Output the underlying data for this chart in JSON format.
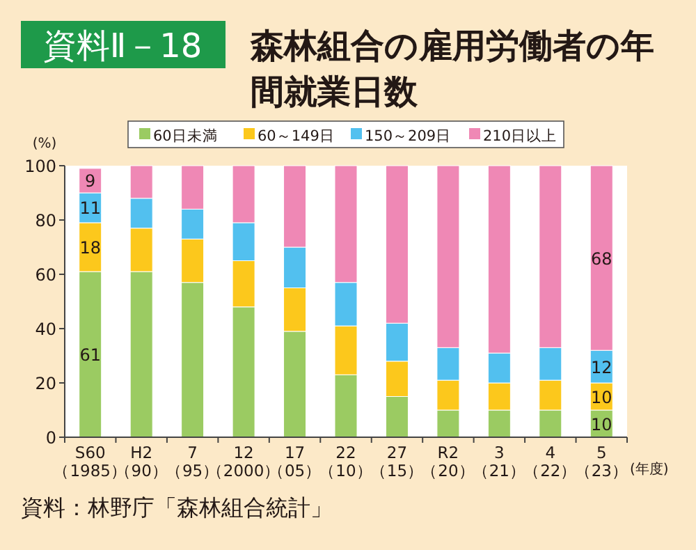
{
  "chart_data": {
    "type": "bar",
    "stacked": true,
    "title": "森林組合の雇用労働者の年間就業日数",
    "ylabel": "(%)",
    "xlabel": "(年度)",
    "annotations": [
      "資料Ⅱ－18",
      "資料：林野庁「森林組合統計」"
    ],
    "categories": [
      "S60\n（1985）",
      "H2\n（90）",
      "7\n（95）",
      "12\n（2000）",
      "17\n（05）",
      "22\n（10）",
      "27\n（15）",
      "R2\n（20）",
      "3\n（21）",
      "4\n（22）",
      "5\n（23）"
    ],
    "series": [
      {
        "name": "60日未満",
        "color": "#9bcb62",
        "values": [
          61,
          61,
          57,
          48,
          39,
          23,
          15,
          10,
          10,
          10,
          10
        ],
        "value_labels": [
          "61",
          null,
          null,
          null,
          null,
          null,
          null,
          null,
          null,
          null,
          "10"
        ]
      },
      {
        "name": "60～149日",
        "color": "#fcc81c",
        "values": [
          18,
          16,
          16,
          17,
          16,
          18,
          13,
          11,
          10,
          11,
          10
        ],
        "value_labels": [
          "18",
          null,
          null,
          null,
          null,
          null,
          null,
          null,
          null,
          null,
          "10"
        ]
      },
      {
        "name": "150～209日",
        "color": "#52c0ef",
        "values": [
          11,
          11,
          11,
          14,
          15,
          16,
          14,
          12,
          11,
          12,
          12
        ],
        "value_labels": [
          "11",
          null,
          null,
          null,
          null,
          null,
          null,
          null,
          null,
          null,
          "12"
        ]
      },
      {
        "name": "210日以上",
        "color": "#ef88b5",
        "values": [
          9,
          12,
          16,
          21,
          30,
          43,
          58,
          67,
          69,
          67,
          68
        ],
        "value_labels": [
          "9",
          null,
          null,
          null,
          null,
          null,
          null,
          null,
          null,
          null,
          "68"
        ]
      }
    ],
    "ylim": [
      0,
      100
    ],
    "yticks": [
      0,
      20,
      40,
      60,
      80,
      100
    ],
    "grid": false,
    "legend": "top"
  }
}
